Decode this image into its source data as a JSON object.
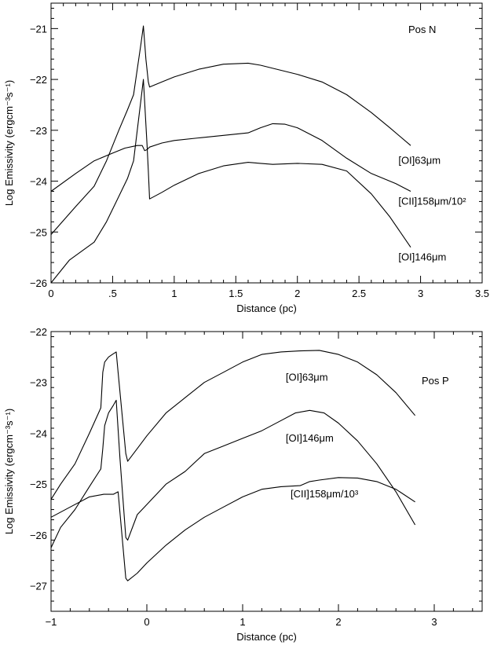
{
  "chart_data": [
    {
      "type": "line",
      "panel_label": "Pos N",
      "xlabel": "Distance (pc)",
      "ylabel": "Log Emissivity (ergcm⁻³s⁻¹)",
      "xlim": [
        0,
        3.5
      ],
      "ylim": [
        -26,
        -20.5
      ],
      "xticks": [
        0,
        0.5,
        1,
        1.5,
        2,
        2.5,
        3,
        3.5
      ],
      "xtick_labels": [
        "0",
        ".5",
        "1",
        "1.5",
        "2",
        "2.5",
        "3",
        "3.5"
      ],
      "yticks": [
        -26,
        -25,
        -24,
        -23,
        -22,
        -21
      ],
      "ytick_labels": [
        "−26",
        "−25",
        "−24",
        "−23",
        "−22",
        "−21"
      ],
      "grid": false,
      "series": [
        {
          "name": "[OI]63μm",
          "label_at": [
            2.82,
            -23.6
          ],
          "x": [
            0,
            0.2,
            0.35,
            0.45,
            0.55,
            0.62,
            0.67,
            0.7,
            0.73,
            0.75,
            0.77,
            0.79,
            0.8,
            0.9,
            1.0,
            1.2,
            1.4,
            1.6,
            1.7,
            1.8,
            2.0,
            2.2,
            2.4,
            2.6,
            2.75,
            2.92
          ],
          "y": [
            -25.05,
            -24.5,
            -24.1,
            -23.6,
            -23.0,
            -22.6,
            -22.3,
            -21.8,
            -21.3,
            -20.95,
            -21.6,
            -22.05,
            -22.15,
            -22.05,
            -21.95,
            -21.8,
            -21.7,
            -21.68,
            -21.72,
            -21.78,
            -21.9,
            -22.05,
            -22.3,
            -22.65,
            -22.95,
            -23.3
          ]
        },
        {
          "name": "[CII]158μm/10²",
          "label_at": [
            2.82,
            -24.4
          ],
          "x": [
            0,
            0.2,
            0.35,
            0.5,
            0.6,
            0.7,
            0.74,
            0.76,
            0.78,
            0.8,
            0.9,
            1.0,
            1.2,
            1.4,
            1.6,
            1.7,
            1.8,
            1.9,
            2.0,
            2.2,
            2.4,
            2.6,
            2.8,
            2.92
          ],
          "y": [
            -24.2,
            -23.85,
            -23.6,
            -23.45,
            -23.35,
            -23.3,
            -23.3,
            -23.4,
            -23.38,
            -23.33,
            -23.25,
            -23.2,
            -23.15,
            -23.1,
            -23.05,
            -22.95,
            -22.87,
            -22.88,
            -22.95,
            -23.2,
            -23.55,
            -23.85,
            -24.05,
            -24.2
          ]
        },
        {
          "name": "[OI]146μm",
          "label_at": [
            2.82,
            -25.5
          ],
          "x": [
            0,
            0.15,
            0.35,
            0.45,
            0.55,
            0.62,
            0.67,
            0.7,
            0.73,
            0.75,
            0.78,
            0.79,
            0.8,
            0.9,
            1.0,
            1.2,
            1.4,
            1.6,
            1.7,
            1.8,
            2.0,
            2.2,
            2.4,
            2.6,
            2.75,
            2.92
          ],
          "y": [
            -26.0,
            -25.55,
            -25.2,
            -24.8,
            -24.3,
            -23.95,
            -23.6,
            -23.0,
            -22.4,
            -22.0,
            -23.3,
            -23.8,
            -24.35,
            -24.22,
            -24.08,
            -23.85,
            -23.7,
            -23.63,
            -23.65,
            -23.67,
            -23.65,
            -23.67,
            -23.8,
            -24.25,
            -24.7,
            -25.3
          ]
        }
      ]
    },
    {
      "type": "line",
      "panel_label": "Pos P",
      "xlabel": "Distance (pc)",
      "ylabel": "Log Emissivity (ergcm⁻³s⁻¹)",
      "xlim": [
        -1,
        3.5
      ],
      "ylim": [
        -27.5,
        -22
      ],
      "xticks": [
        -1,
        0,
        1,
        2,
        3
      ],
      "xtick_labels": [
        "−1",
        "0",
        "1",
        "2",
        "3"
      ],
      "yticks": [
        -27,
        -26,
        -25,
        -24,
        -23,
        -22
      ],
      "ytick_labels": [
        "−27",
        "−26",
        "−25",
        "−24",
        "−23",
        "−22"
      ],
      "grid": false,
      "series": [
        {
          "name": "[OI]63μm",
          "label_at": [
            1.45,
            -22.9
          ],
          "x": [
            -1,
            -0.9,
            -0.75,
            -0.6,
            -0.48,
            -0.46,
            -0.44,
            -0.4,
            -0.36,
            -0.32,
            -0.3,
            -0.22,
            -0.2,
            -0.1,
            0,
            0.2,
            0.4,
            0.6,
            0.8,
            1.0,
            1.2,
            1.4,
            1.6,
            1.8,
            2.0,
            2.2,
            2.4,
            2.6,
            2.8
          ],
          "y": [
            -25.3,
            -25.0,
            -24.6,
            -24.0,
            -23.5,
            -22.8,
            -22.6,
            -22.5,
            -22.45,
            -22.4,
            -22.8,
            -24.4,
            -24.55,
            -24.3,
            -24.05,
            -23.6,
            -23.3,
            -23.0,
            -22.8,
            -22.6,
            -22.45,
            -22.4,
            -22.38,
            -22.37,
            -22.45,
            -22.6,
            -22.85,
            -23.2,
            -23.65
          ]
        },
        {
          "name": "[OI]146μm",
          "label_at": [
            1.45,
            -24.1
          ],
          "x": [
            -1,
            -0.9,
            -0.75,
            -0.6,
            -0.48,
            -0.46,
            -0.44,
            -0.4,
            -0.35,
            -0.32,
            -0.28,
            -0.22,
            -0.2,
            -0.1,
            0,
            0.2,
            0.4,
            0.6,
            0.8,
            1.0,
            1.2,
            1.4,
            1.55,
            1.7,
            1.85,
            2.0,
            2.2,
            2.4,
            2.6,
            2.8
          ],
          "y": [
            -26.25,
            -25.85,
            -25.5,
            -25.05,
            -24.7,
            -24.3,
            -23.85,
            -23.6,
            -23.45,
            -23.35,
            -24.5,
            -26.05,
            -26.1,
            -25.6,
            -25.4,
            -25.0,
            -24.75,
            -24.4,
            -24.25,
            -24.1,
            -23.95,
            -23.75,
            -23.6,
            -23.55,
            -23.6,
            -23.8,
            -24.15,
            -24.6,
            -25.15,
            -25.8
          ]
        },
        {
          "name": "[CII]158μm/10³",
          "label_at": [
            1.5,
            -25.2
          ],
          "x": [
            -1,
            -0.8,
            -0.6,
            -0.45,
            -0.4,
            -0.35,
            -0.3,
            -0.22,
            -0.2,
            -0.1,
            0,
            0.2,
            0.4,
            0.6,
            0.8,
            1.0,
            1.2,
            1.4,
            1.6,
            1.7,
            1.8,
            2.0,
            2.2,
            2.4,
            2.6,
            2.8
          ],
          "y": [
            -25.65,
            -25.45,
            -25.25,
            -25.2,
            -25.2,
            -25.2,
            -25.15,
            -26.85,
            -26.9,
            -26.75,
            -26.55,
            -26.2,
            -25.9,
            -25.65,
            -25.45,
            -25.25,
            -25.1,
            -25.05,
            -25.03,
            -24.95,
            -24.92,
            -24.87,
            -24.88,
            -24.95,
            -25.1,
            -25.35
          ]
        }
      ]
    }
  ]
}
